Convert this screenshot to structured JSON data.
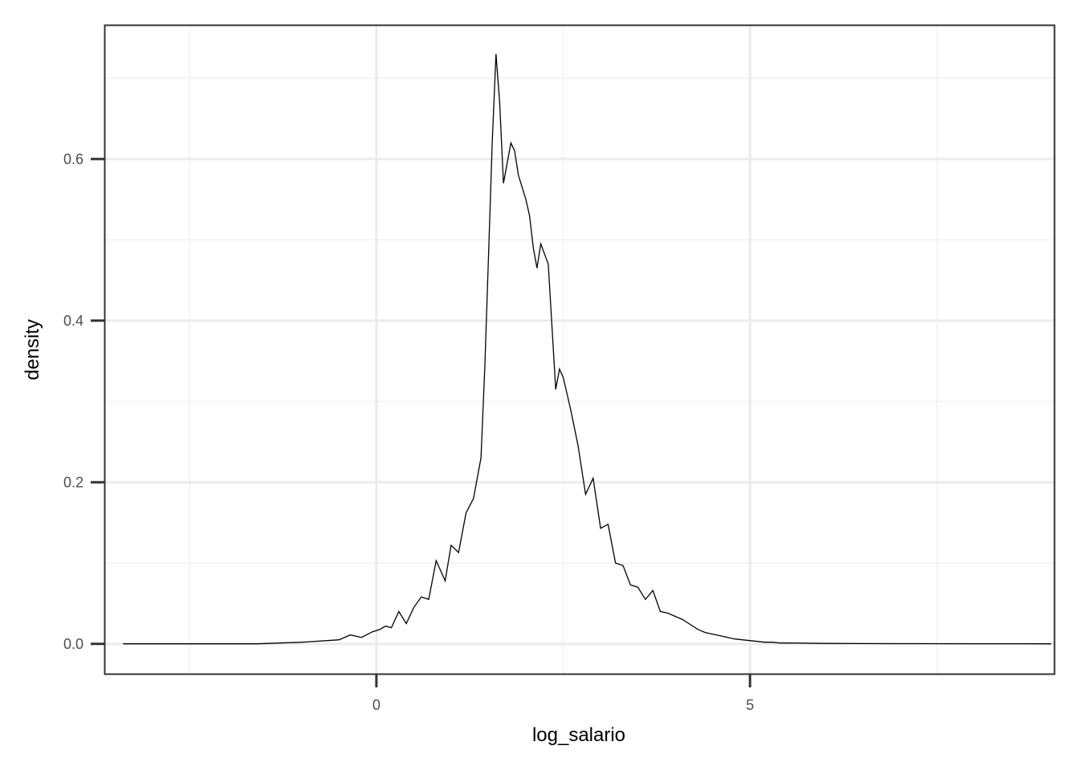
{
  "chart_data": {
    "type": "line",
    "subtype": "density",
    "title": "",
    "xlabel": "log_salario",
    "ylabel": "density",
    "xlim": [
      -3.63,
      9.07
    ],
    "ylim": [
      -0.037,
      0.765
    ],
    "x_ticks": [
      0,
      5
    ],
    "x_tick_labels": [
      "0",
      "5"
    ],
    "x_minor_ticks": [
      -2.5,
      2.5,
      7.5
    ],
    "y_ticks": [
      0.0,
      0.2,
      0.4,
      0.6
    ],
    "y_tick_labels": [
      "0.0",
      "0.2",
      "0.4",
      "0.6"
    ],
    "y_minor_ticks": [
      0.1,
      0.3,
      0.5,
      0.7
    ],
    "grid": true,
    "legend": "none",
    "colors": {
      "line": "#000000",
      "panel_border": "#333333",
      "grid_major": "#ebebeb",
      "grid_minor": "#f2f2f2"
    },
    "x": [
      -3.39,
      -1.6,
      -1.0,
      -0.5,
      -0.35,
      -0.2,
      -0.05,
      0.05,
      0.12,
      0.2,
      0.3,
      0.4,
      0.5,
      0.6,
      0.7,
      0.8,
      0.92,
      1.0,
      1.1,
      1.2,
      1.3,
      1.4,
      1.45,
      1.5,
      1.55,
      1.6,
      1.65,
      1.7,
      1.8,
      1.85,
      1.9,
      2.0,
      2.05,
      2.1,
      2.15,
      2.2,
      2.3,
      2.4,
      2.45,
      2.5,
      2.6,
      2.7,
      2.8,
      2.9,
      3.0,
      3.1,
      3.2,
      3.3,
      3.4,
      3.5,
      3.6,
      3.7,
      3.8,
      3.9,
      4.0,
      4.1,
      4.2,
      4.3,
      4.4,
      4.5,
      4.6,
      4.7,
      4.8,
      4.9,
      5.0,
      5.1,
      5.2,
      5.3,
      5.4,
      5.5,
      5.6,
      6.0,
      6.5,
      7.0,
      8.0,
      9.03
    ],
    "y": [
      0.0,
      0.0,
      0.002,
      0.005,
      0.011,
      0.008,
      0.015,
      0.018,
      0.022,
      0.02,
      0.04,
      0.025,
      0.045,
      0.058,
      0.055,
      0.103,
      0.078,
      0.122,
      0.113,
      0.162,
      0.18,
      0.23,
      0.34,
      0.48,
      0.62,
      0.73,
      0.67,
      0.57,
      0.62,
      0.61,
      0.58,
      0.55,
      0.53,
      0.49,
      0.465,
      0.495,
      0.47,
      0.315,
      0.34,
      0.33,
      0.29,
      0.245,
      0.185,
      0.205,
      0.143,
      0.148,
      0.1,
      0.097,
      0.073,
      0.07,
      0.055,
      0.066,
      0.04,
      0.038,
      0.034,
      0.03,
      0.024,
      0.018,
      0.014,
      0.012,
      0.01,
      0.008,
      0.006,
      0.005,
      0.004,
      0.003,
      0.002,
      0.002,
      0.001,
      0.001,
      0.001,
      0.0005,
      0.0003,
      0.0002,
      0.0001,
      0.0
    ]
  }
}
